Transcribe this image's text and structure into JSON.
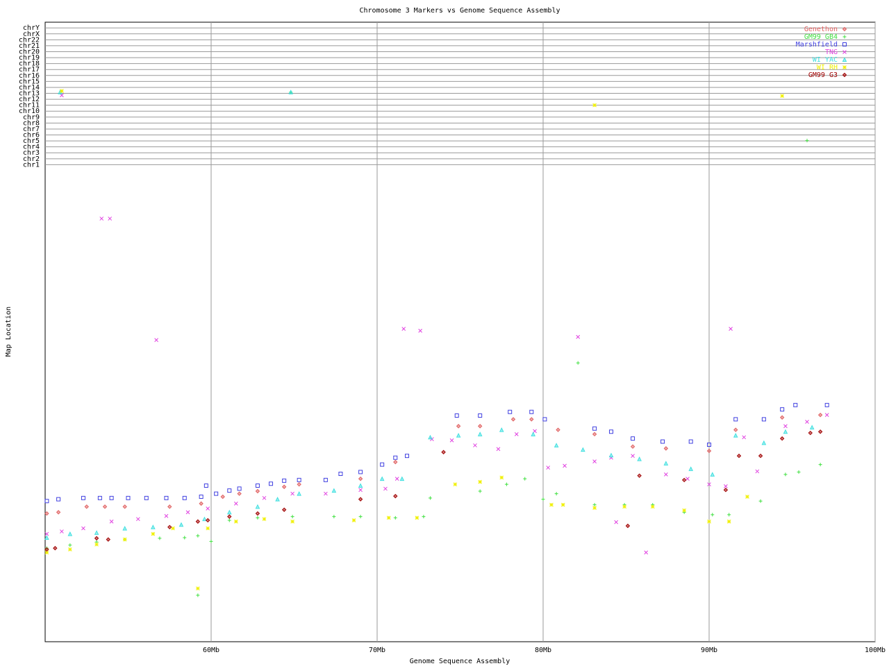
{
  "chart_data": {
    "type": "scatter",
    "title": "Chromosome 3 Markers vs Genome Sequence Assembly",
    "xlabel": "Genome Sequence Assembly",
    "ylabel": "Map Location",
    "xlim": [
      50,
      100
    ],
    "xticks": [
      {
        "value": 60,
        "label": "60Mb"
      },
      {
        "value": 70,
        "label": "70Mb"
      },
      {
        "value": 80,
        "label": "80Mb"
      },
      {
        "value": 90,
        "label": "90Mb"
      },
      {
        "value": 100,
        "label": "100Mb"
      }
    ],
    "ylim": [
      0,
      100
    ],
    "yticks": [
      {
        "value": 77.0,
        "label": "chr1"
      },
      {
        "value": 77.96,
        "label": "chr2"
      },
      {
        "value": 78.92,
        "label": "chr3"
      },
      {
        "value": 79.88,
        "label": "chr4"
      },
      {
        "value": 80.84,
        "label": "chr5"
      },
      {
        "value": 81.8,
        "label": "chr6"
      },
      {
        "value": 82.76,
        "label": "chr7"
      },
      {
        "value": 83.72,
        "label": "chr8"
      },
      {
        "value": 84.68,
        "label": "chr9"
      },
      {
        "value": 85.64,
        "label": "chr10"
      },
      {
        "value": 86.6,
        "label": "chr11"
      },
      {
        "value": 87.56,
        "label": "chr12"
      },
      {
        "value": 88.52,
        "label": "chr13"
      },
      {
        "value": 89.48,
        "label": "chr14"
      },
      {
        "value": 90.44,
        "label": "chr15"
      },
      {
        "value": 91.4,
        "label": "chr16"
      },
      {
        "value": 92.36,
        "label": "chr17"
      },
      {
        "value": 93.32,
        "label": "chr18"
      },
      {
        "value": 94.28,
        "label": "chr19"
      },
      {
        "value": 95.24,
        "label": "chr20"
      },
      {
        "value": 96.2,
        "label": "chr21"
      },
      {
        "value": 97.16,
        "label": "chr22"
      },
      {
        "value": 98.12,
        "label": "chrX"
      },
      {
        "value": 99.08,
        "label": "chrY"
      }
    ],
    "grid": true,
    "legend": "upper right",
    "series": [
      {
        "name": "Genethon",
        "color": "#e06060",
        "marker": "diamond",
        "x": [
          50.1,
          50.8,
          52.5,
          53.6,
          54.8,
          57.5,
          59.4,
          60.7,
          61.7,
          62.8,
          64.4,
          65.3,
          69.0,
          71.1,
          74.9,
          76.2,
          78.2,
          79.3,
          80.9,
          83.1,
          85.4,
          87.4,
          90.0,
          91.6,
          94.4,
          96.7
        ],
        "values": [
          20.7,
          20.9,
          21.8,
          21.8,
          21.8,
          21.8,
          22.3,
          23.4,
          23.9,
          24.3,
          25.0,
          25.4,
          26.3,
          29.0,
          34.8,
          34.8,
          35.9,
          35.9,
          34.2,
          33.5,
          31.5,
          31.2,
          30.8,
          34.2,
          36.2,
          36.6
        ]
      },
      {
        "name": "GM99 GB4",
        "color": "#40e040",
        "marker": "plus",
        "x": [
          50.1,
          51.5,
          53.1,
          54.8,
          56.9,
          58.4,
          59.2,
          59.2,
          60.0,
          61.1,
          62.8,
          64.9,
          64.8,
          67.4,
          69.0,
          71.1,
          72.8,
          73.2,
          76.2,
          77.8,
          78.9,
          80.0,
          80.8,
          82.1,
          83.1,
          84.9,
          86.6,
          88.5,
          90.2,
          91.2,
          93.1,
          94.6,
          95.4,
          96.7,
          95.9
        ],
        "values": [
          15.1,
          15.6,
          16.1,
          16.5,
          16.7,
          16.8,
          7.5,
          17.1,
          16.2,
          19.6,
          20.0,
          20.2,
          88.7,
          20.2,
          20.2,
          20.0,
          20.2,
          23.2,
          24.3,
          25.4,
          26.3,
          23.0,
          23.9,
          45.0,
          22.1,
          22.1,
          22.1,
          20.9,
          20.5,
          20.5,
          22.7,
          27.0,
          27.4,
          28.6,
          80.9
        ]
      },
      {
        "name": "Marshfield",
        "color": "#4040e0",
        "marker": "square",
        "x": [
          50.1,
          50.8,
          52.3,
          53.3,
          54.0,
          55.0,
          56.1,
          57.3,
          58.4,
          59.4,
          59.7,
          60.3,
          61.1,
          61.7,
          62.8,
          63.6,
          64.4,
          65.3,
          66.9,
          67.8,
          69.0,
          70.3,
          71.1,
          71.8,
          74.8,
          76.2,
          78.0,
          79.3,
          80.1,
          83.1,
          84.1,
          85.4,
          87.2,
          88.9,
          90.0,
          91.6,
          93.3,
          94.4,
          95.2,
          97.1
        ],
        "values": [
          22.7,
          23.0,
          23.2,
          23.2,
          23.2,
          23.2,
          23.2,
          23.2,
          23.2,
          23.4,
          25.2,
          23.9,
          24.4,
          24.7,
          25.2,
          25.5,
          26.0,
          26.1,
          26.1,
          27.1,
          27.4,
          28.6,
          29.7,
          30.0,
          36.5,
          36.5,
          37.1,
          37.1,
          35.9,
          34.4,
          33.9,
          32.8,
          32.3,
          32.3,
          31.8,
          35.9,
          35.9,
          37.5,
          38.2,
          38.2
        ]
      },
      {
        "name": "TNG",
        "color": "#e040e0",
        "marker": "x",
        "x": [
          50.1,
          51.0,
          52.3,
          53.4,
          53.9,
          54.0,
          55.6,
          56.7,
          57.3,
          58.6,
          59.8,
          61.5,
          63.2,
          64.9,
          66.9,
          69.0,
          70.5,
          71.2,
          71.6,
          72.6,
          73.3,
          74.5,
          75.9,
          77.3,
          78.4,
          79.5,
          80.3,
          81.3,
          82.1,
          83.1,
          84.1,
          84.4,
          85.4,
          86.2,
          87.4,
          88.7,
          90.0,
          91.0,
          91.3,
          92.1,
          92.9,
          94.6,
          95.9,
          97.1,
          51.0
        ],
        "values": [
          17.4,
          17.8,
          18.3,
          68.3,
          68.3,
          19.4,
          19.8,
          48.7,
          20.3,
          20.9,
          21.5,
          22.3,
          23.2,
          23.9,
          23.9,
          24.5,
          24.7,
          26.3,
          50.5,
          50.2,
          32.7,
          32.5,
          31.7,
          31.1,
          33.5,
          34.0,
          28.1,
          28.4,
          49.2,
          29.1,
          29.7,
          19.3,
          30.0,
          14.4,
          27.0,
          26.3,
          25.4,
          25.1,
          50.5,
          33.0,
          27.5,
          34.8,
          35.5,
          36.6,
          88.2
        ]
      },
      {
        "name": "WI YAC",
        "color": "#40e0e0",
        "marker": "triangle",
        "x": [
          50.1,
          51.5,
          53.1,
          54.8,
          56.5,
          58.2,
          59.6,
          61.1,
          62.8,
          64.0,
          65.3,
          67.4,
          69.0,
          70.3,
          71.5,
          73.2,
          74.9,
          76.2,
          77.5,
          79.4,
          80.8,
          82.4,
          84.1,
          85.8,
          87.4,
          88.9,
          90.2,
          91.6,
          93.3,
          94.6,
          96.2,
          50.9,
          64.8
        ],
        "values": [
          16.8,
          17.4,
          17.6,
          18.3,
          18.5,
          18.9,
          19.8,
          20.9,
          21.8,
          23.0,
          23.9,
          24.4,
          25.2,
          26.3,
          26.3,
          33.0,
          33.3,
          33.5,
          34.2,
          33.5,
          31.7,
          31.0,
          30.1,
          29.5,
          28.8,
          27.9,
          27.0,
          33.3,
          32.1,
          33.9,
          34.6,
          88.7,
          88.7
        ]
      },
      {
        "name": "WI RH",
        "color": "#f0f000",
        "marker": "star",
        "x": [
          50.1,
          51.5,
          53.1,
          54.8,
          56.5,
          57.7,
          59.2,
          59.8,
          61.5,
          63.2,
          64.9,
          68.6,
          70.7,
          72.4,
          74.7,
          76.2,
          77.5,
          80.5,
          81.2,
          83.1,
          83.1,
          84.9,
          86.6,
          88.5,
          90.0,
          91.2,
          92.3,
          94.4,
          51.0
        ],
        "values": [
          14.4,
          14.9,
          15.7,
          16.5,
          17.4,
          18.3,
          8.6,
          18.3,
          19.4,
          19.8,
          19.4,
          19.6,
          20.0,
          20.0,
          25.4,
          25.8,
          26.5,
          22.1,
          22.1,
          86.6,
          21.6,
          21.8,
          21.8,
          21.2,
          19.4,
          19.4,
          23.4,
          88.1,
          88.9
        ]
      },
      {
        "name": "GM99 G3",
        "color": "#a00000",
        "marker": "diamond",
        "x": [
          50.1,
          50.6,
          53.1,
          53.8,
          57.5,
          59.2,
          59.8,
          61.1,
          62.8,
          64.4,
          69.0,
          71.1,
          74.0,
          85.1,
          85.8,
          88.5,
          91.0,
          91.8,
          93.1,
          94.4,
          96.1,
          96.7
        ],
        "values": [
          14.9,
          15.1,
          16.7,
          16.5,
          18.5,
          19.4,
          19.6,
          20.2,
          20.7,
          21.3,
          23.0,
          23.5,
          30.6,
          18.7,
          26.8,
          26.1,
          24.5,
          30.0,
          30.0,
          32.8,
          33.7,
          33.9
        ]
      }
    ]
  }
}
